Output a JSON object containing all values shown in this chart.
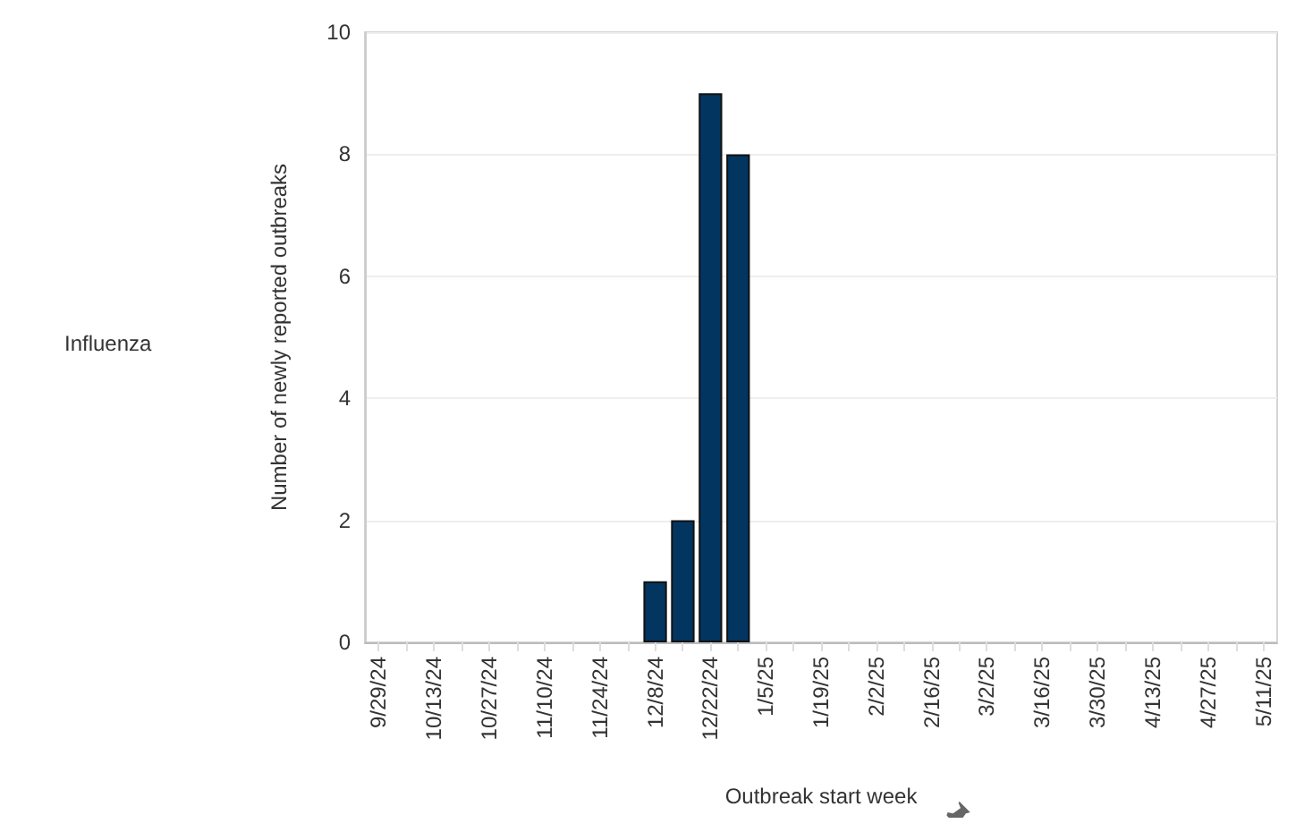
{
  "chart_data": {
    "type": "bar",
    "xlabel": "Outbreak start week",
    "ylabel": "Number of newly reported outbreaks",
    "annotations": [
      "Influenza"
    ],
    "categories": [
      "9/29/24",
      null,
      "10/13/24",
      null,
      "10/27/24",
      null,
      "11/10/24",
      null,
      "11/24/24",
      null,
      "12/8/24",
      null,
      "12/22/24",
      null,
      "1/5/25",
      null,
      "1/19/25",
      null,
      "2/2/25",
      null,
      "2/16/25",
      null,
      "3/2/25",
      null,
      "3/16/25",
      null,
      "3/30/25",
      null,
      "4/13/25",
      null,
      "4/27/25",
      null,
      "5/11/25"
    ],
    "values": [
      null,
      null,
      null,
      null,
      null,
      null,
      null,
      null,
      null,
      null,
      1,
      2,
      9,
      8,
      null,
      null,
      null,
      null,
      null,
      null,
      null,
      null,
      null,
      null,
      null,
      null,
      null,
      null,
      null,
      null,
      null,
      null,
      null
    ],
    "color": "#023661",
    "ylim": [
      0,
      10
    ],
    "yticks": [
      0,
      2,
      4,
      6,
      8,
      10
    ],
    "grid": "y"
  }
}
